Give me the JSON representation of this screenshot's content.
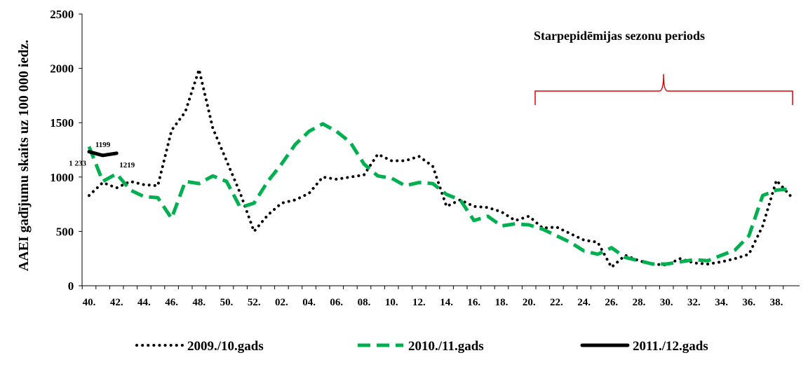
{
  "chart_data": {
    "type": "line",
    "y_label": "AAEI gadījumu skaits uz 100 000 iedz.",
    "annotation": "Starpepidēmijas sezonu  periods",
    "categories": [
      "40.",
      null,
      "42.",
      null,
      "44.",
      null,
      "46.",
      null,
      "48.",
      null,
      "50.",
      null,
      "52.",
      null,
      "02.",
      null,
      "04.",
      null,
      "06.",
      null,
      "08.",
      null,
      "10.",
      null,
      "12.",
      null,
      "14.",
      null,
      "16.",
      null,
      "18.",
      null,
      "20.",
      null,
      "22.",
      null,
      "24.",
      null,
      "26.",
      null,
      "28.",
      null,
      "30.",
      null,
      "32.",
      null,
      "34.",
      null,
      "36.",
      null,
      "38.",
      null
    ],
    "ylim": [
      0,
      2500
    ],
    "yticks": [
      0,
      500,
      1000,
      1500,
      2000,
      2500
    ],
    "series": [
      {
        "name": "2009./10.gads",
        "color": "#000000",
        "style": "dotted",
        "values": [
          830,
          950,
          900,
          960,
          930,
          920,
          1430,
          1600,
          1990,
          1450,
          1150,
          850,
          500,
          650,
          760,
          790,
          850,
          1000,
          980,
          1000,
          1020,
          1210,
          1150,
          1150,
          1190,
          1100,
          730,
          790,
          730,
          720,
          680,
          600,
          640,
          530,
          540,
          480,
          420,
          400,
          170,
          280,
          230,
          200,
          190,
          250,
          210,
          200,
          220,
          250,
          290,
          550,
          970,
          830
        ]
      },
      {
        "name": "2010./11.gads",
        "color": "#00b050",
        "style": "dashed",
        "values": [
          1280,
          960,
          1030,
          880,
          820,
          810,
          620,
          960,
          940,
          1010,
          960,
          720,
          760,
          960,
          1120,
          1300,
          1420,
          1490,
          1420,
          1320,
          1120,
          1010,
          990,
          920,
          950,
          940,
          840,
          790,
          600,
          640,
          550,
          570,
          560,
          520,
          460,
          400,
          320,
          290,
          350,
          260,
          230,
          200,
          200,
          220,
          240,
          230,
          280,
          330,
          460,
          830,
          880,
          890
        ]
      },
      {
        "name": "2011./12.gads",
        "color": "#000000",
        "style": "solid",
        "values": [
          1233,
          1199,
          1219,
          null,
          null,
          null,
          null,
          null,
          null,
          null,
          null,
          null,
          null,
          null,
          null,
          null,
          null,
          null,
          null,
          null,
          null,
          null,
          null,
          null,
          null,
          null,
          null,
          null,
          null,
          null,
          null,
          null,
          null,
          null,
          null,
          null,
          null,
          null,
          null,
          null,
          null,
          null,
          null,
          null,
          null,
          null,
          null,
          null,
          null,
          null,
          null,
          null
        ],
        "value_labels": [
          "1 233",
          "1199",
          "1219",
          null,
          null,
          null,
          null,
          null,
          null,
          null,
          null,
          null,
          null,
          null,
          null,
          null,
          null,
          null,
          null,
          null,
          null,
          null,
          null,
          null,
          null,
          null,
          null,
          null,
          null,
          null,
          null,
          null,
          null,
          null,
          null,
          null,
          null,
          null,
          null,
          null,
          null,
          null,
          null,
          null,
          null,
          null,
          null,
          null,
          null,
          null,
          null,
          null
        ]
      }
    ]
  }
}
